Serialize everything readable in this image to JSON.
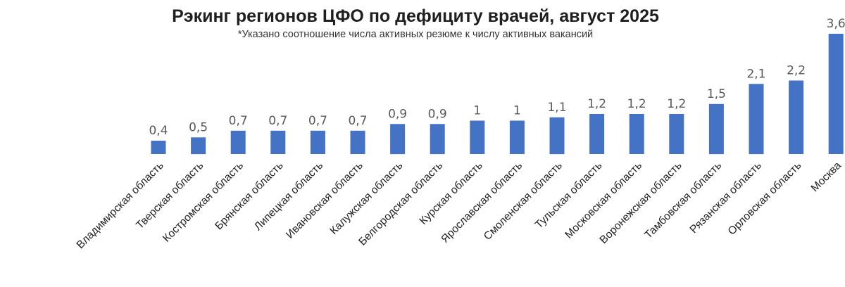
{
  "chart_data": {
    "type": "bar",
    "title": "Рэкинг регионов ЦФО по дефициту врачей, август 2025",
    "subtitle": "*Указано соотношение числа активных резюме к числу активных вакансий",
    "xlabel": "",
    "ylabel": "",
    "ylim": [
      0,
      3.6
    ],
    "grid": false,
    "legend": "none",
    "bar_color": "#4472C4",
    "categories": [
      "Владимирская область",
      "Тверская область",
      "Костромская область",
      "Брянская область",
      "Липецкая область",
      "Ивановская область",
      "Калужская область",
      "Белгородская область",
      "Курская область",
      "Ярославская область",
      "Смоленская область",
      "Тульская область",
      "Московская область",
      "Воронежская область",
      "Тамбовская область",
      "Рязанская область",
      "Орловская область",
      "Москва"
    ],
    "values": [
      0.4,
      0.5,
      0.7,
      0.7,
      0.7,
      0.7,
      0.9,
      0.9,
      1,
      1,
      1.1,
      1.2,
      1.2,
      1.2,
      1.5,
      2.1,
      2.2,
      3.6
    ],
    "value_labels": [
      "0,4",
      "0,5",
      "0,7",
      "0,7",
      "0,7",
      "0,7",
      "0,9",
      "0,9",
      "1",
      "1",
      "1,1",
      "1,2",
      "1,2",
      "1,2",
      "1,5",
      "2,1",
      "2,2",
      "3,6"
    ]
  }
}
